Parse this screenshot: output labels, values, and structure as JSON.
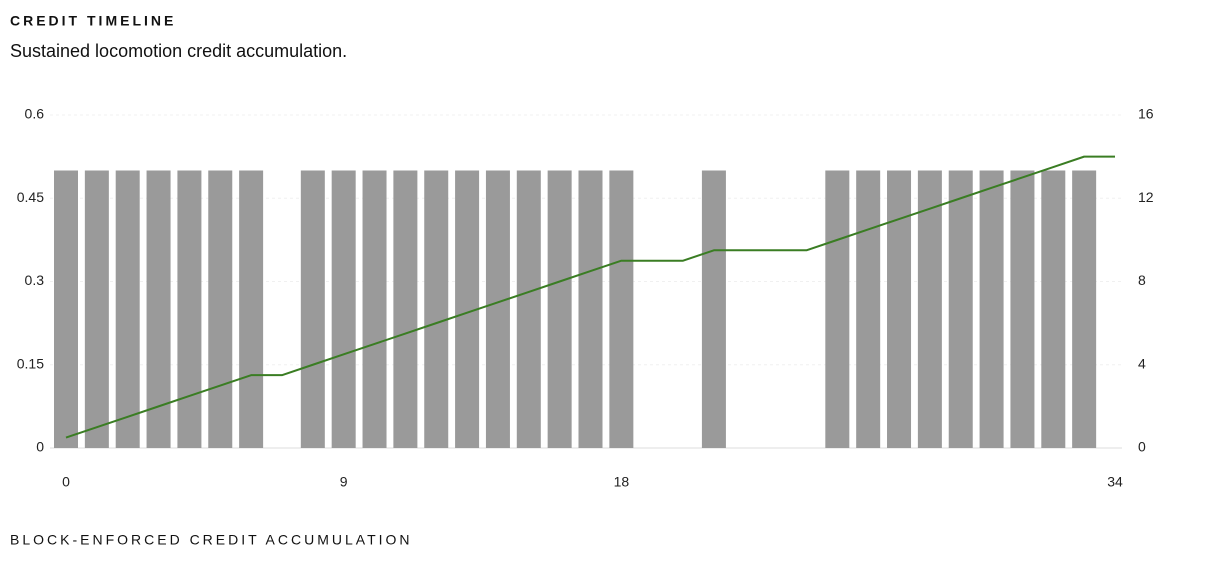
{
  "chart_data": {
    "type": "combo",
    "title": "CREDIT TIMELINE",
    "subtitle": "Sustained locomotion credit accumulation.",
    "x": [
      0,
      1,
      2,
      3,
      4,
      5,
      6,
      7,
      8,
      9,
      10,
      11,
      12,
      13,
      14,
      15,
      16,
      17,
      18,
      19,
      20,
      21,
      22,
      23,
      24,
      25,
      26,
      27,
      28,
      29,
      30,
      31,
      32,
      33,
      34
    ],
    "series": [
      {
        "type": "bar",
        "color": "#9a9a9a",
        "values": [
          0.5,
          0.5,
          0.5,
          0.5,
          0.5,
          0.5,
          0.5,
          null,
          0.5,
          0.5,
          0.5,
          0.5,
          0.5,
          0.5,
          0.5,
          0.5,
          0.5,
          0.5,
          0.5,
          null,
          null,
          0.5,
          null,
          null,
          null,
          0.5,
          0.5,
          0.5,
          0.5,
          0.5,
          0.5,
          0.5,
          0.5,
          0.5,
          null
        ]
      },
      {
        "type": "line",
        "axis": "y2",
        "color": "#3a7d23",
        "values": [
          0.5,
          1,
          1.5,
          2,
          2.5,
          3,
          3.5,
          3.5,
          4,
          4.5,
          5,
          5.5,
          6,
          6.5,
          7,
          7.5,
          8,
          8.5,
          9,
          9,
          9,
          9.5,
          9.5,
          9.5,
          9.5,
          10,
          10.5,
          11,
          11.5,
          12,
          12.5,
          13,
          13.5,
          14,
          14
        ]
      }
    ],
    "xlim": [
      0,
      34
    ],
    "xticks": [
      0,
      9,
      18,
      34
    ],
    "ylim": [
      0,
      0.6
    ],
    "yticks": [
      0,
      0.15,
      0.3,
      0.45,
      0.6
    ],
    "y2lim": [
      0,
      16
    ],
    "y2ticks": [
      0,
      4,
      8,
      12,
      16
    ],
    "grid": true
  },
  "footer": "BLOCK-ENFORCED CREDIT ACCUMULATION"
}
